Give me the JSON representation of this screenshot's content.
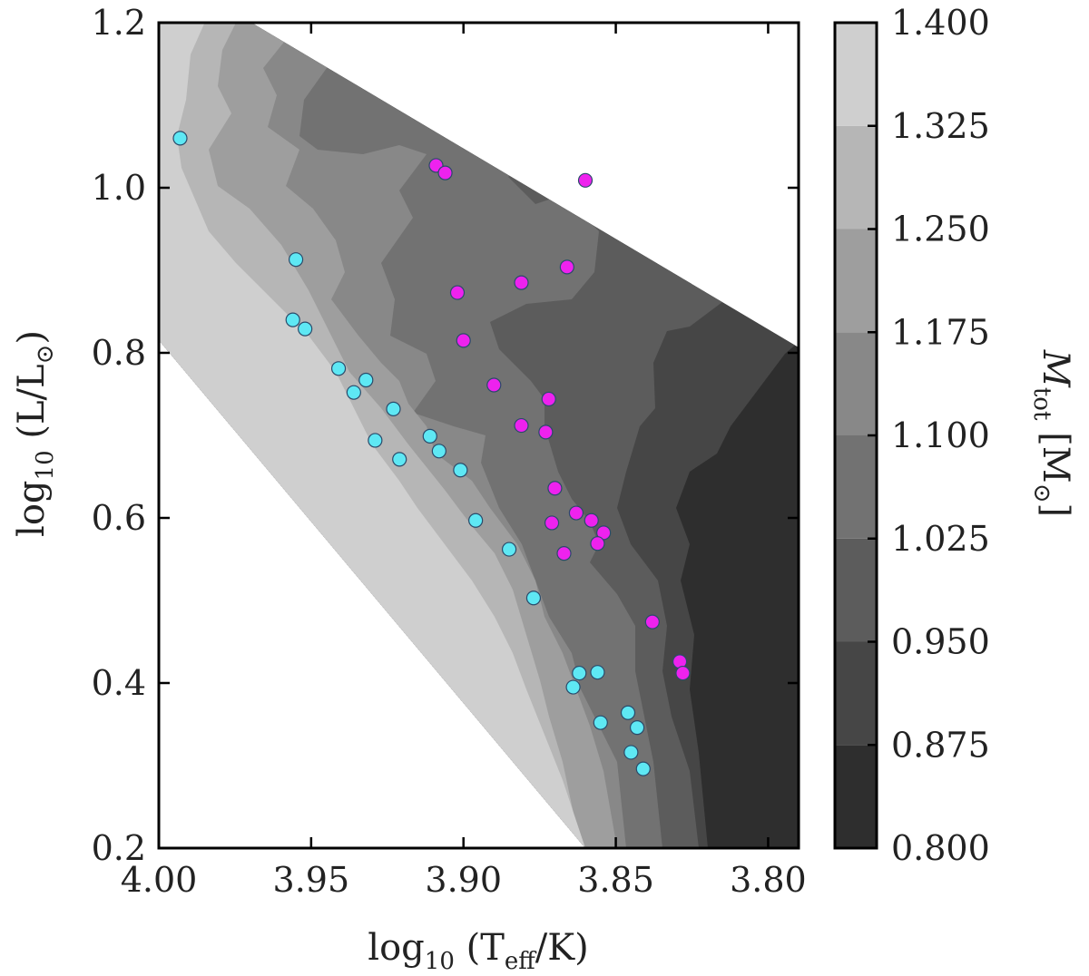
{
  "chart_data": {
    "type": "scatter",
    "subtype": "filled-contour-with-scatter-overlay",
    "xlabel_parts": {
      "pre": "log",
      "sub": "10",
      "mid": " (T",
      "sub2": "eff",
      "post": "/K)"
    },
    "ylabel_parts": {
      "pre": "log",
      "sub": "10",
      "mid": " (L/L",
      "sub2": "⊙",
      "post": ")"
    },
    "colorbar_label_parts": {
      "pre": "M",
      "sub": "tot",
      "post": " [M",
      "sub2": "⊙",
      "end": "]"
    },
    "xlim": [
      4.0,
      3.79
    ],
    "ylim": [
      0.2,
      1.2
    ],
    "xticks": [
      {
        "value": 4.0,
        "label": "4.00"
      },
      {
        "value": 3.95,
        "label": "3.95"
      },
      {
        "value": 3.9,
        "label": "3.90"
      },
      {
        "value": 3.85,
        "label": "3.85"
      },
      {
        "value": 3.8,
        "label": "3.80"
      }
    ],
    "yticks": [
      {
        "value": 0.2,
        "label": "0.2"
      },
      {
        "value": 0.4,
        "label": "0.4"
      },
      {
        "value": 0.6,
        "label": "0.6"
      },
      {
        "value": 0.8,
        "label": "0.8"
      },
      {
        "value": 1.0,
        "label": "1.0"
      },
      {
        "value": 1.2,
        "label": "1.2"
      }
    ],
    "colorbar": {
      "min": 0.8,
      "max": 1.4,
      "ticks": [
        "0.800",
        "0.875",
        "0.950",
        "1.025",
        "1.100",
        "1.175",
        "1.250",
        "1.325",
        "1.400"
      ],
      "levels": [
        {
          "min": 0.8,
          "max": 0.875,
          "color": "#2e2e2e"
        },
        {
          "min": 0.875,
          "max": 0.95,
          "color": "#464646"
        },
        {
          "min": 0.95,
          "max": 1.025,
          "color": "#5c5c5c"
        },
        {
          "min": 1.025,
          "max": 1.1,
          "color": "#727272"
        },
        {
          "min": 1.1,
          "max": 1.175,
          "color": "#888888"
        },
        {
          "min": 1.175,
          "max": 1.25,
          "color": "#9e9e9e"
        },
        {
          "min": 1.25,
          "max": 1.325,
          "color": "#b6b6b6"
        },
        {
          "min": 1.325,
          "max": 1.4,
          "color": "#cfcfcf"
        }
      ]
    },
    "series": [
      {
        "name": "cyan",
        "color": "#5ee8f4",
        "points": [
          {
            "x": 3.993,
            "y": 1.06
          },
          {
            "x": 3.955,
            "y": 0.913
          },
          {
            "x": 3.956,
            "y": 0.84
          },
          {
            "x": 3.952,
            "y": 0.829
          },
          {
            "x": 3.941,
            "y": 0.781
          },
          {
            "x": 3.936,
            "y": 0.752
          },
          {
            "x": 3.932,
            "y": 0.767
          },
          {
            "x": 3.929,
            "y": 0.694
          },
          {
            "x": 3.923,
            "y": 0.732
          },
          {
            "x": 3.921,
            "y": 0.671
          },
          {
            "x": 3.911,
            "y": 0.699
          },
          {
            "x": 3.908,
            "y": 0.681
          },
          {
            "x": 3.901,
            "y": 0.658
          },
          {
            "x": 3.896,
            "y": 0.597
          },
          {
            "x": 3.885,
            "y": 0.562
          },
          {
            "x": 3.877,
            "y": 0.503
          },
          {
            "x": 3.862,
            "y": 0.412
          },
          {
            "x": 3.864,
            "y": 0.395
          },
          {
            "x": 3.856,
            "y": 0.413
          },
          {
            "x": 3.855,
            "y": 0.352
          },
          {
            "x": 3.846,
            "y": 0.364
          },
          {
            "x": 3.843,
            "y": 0.346
          },
          {
            "x": 3.845,
            "y": 0.316
          },
          {
            "x": 3.841,
            "y": 0.296
          }
        ]
      },
      {
        "name": "magenta",
        "color": "#ee22ee",
        "points": [
          {
            "x": 3.909,
            "y": 1.027
          },
          {
            "x": 3.906,
            "y": 1.018
          },
          {
            "x": 3.86,
            "y": 1.009
          },
          {
            "x": 3.881,
            "y": 0.885
          },
          {
            "x": 3.866,
            "y": 0.904
          },
          {
            "x": 3.902,
            "y": 0.873
          },
          {
            "x": 3.9,
            "y": 0.815
          },
          {
            "x": 3.89,
            "y": 0.761
          },
          {
            "x": 3.872,
            "y": 0.744
          },
          {
            "x": 3.881,
            "y": 0.712
          },
          {
            "x": 3.873,
            "y": 0.704
          },
          {
            "x": 3.87,
            "y": 0.636
          },
          {
            "x": 3.871,
            "y": 0.594
          },
          {
            "x": 3.863,
            "y": 0.606
          },
          {
            "x": 3.858,
            "y": 0.597
          },
          {
            "x": 3.854,
            "y": 0.582
          },
          {
            "x": 3.856,
            "y": 0.569
          },
          {
            "x": 3.867,
            "y": 0.557
          },
          {
            "x": 3.838,
            "y": 0.474
          },
          {
            "x": 3.829,
            "y": 0.426
          },
          {
            "x": 3.828,
            "y": 0.412
          }
        ]
      }
    ]
  }
}
